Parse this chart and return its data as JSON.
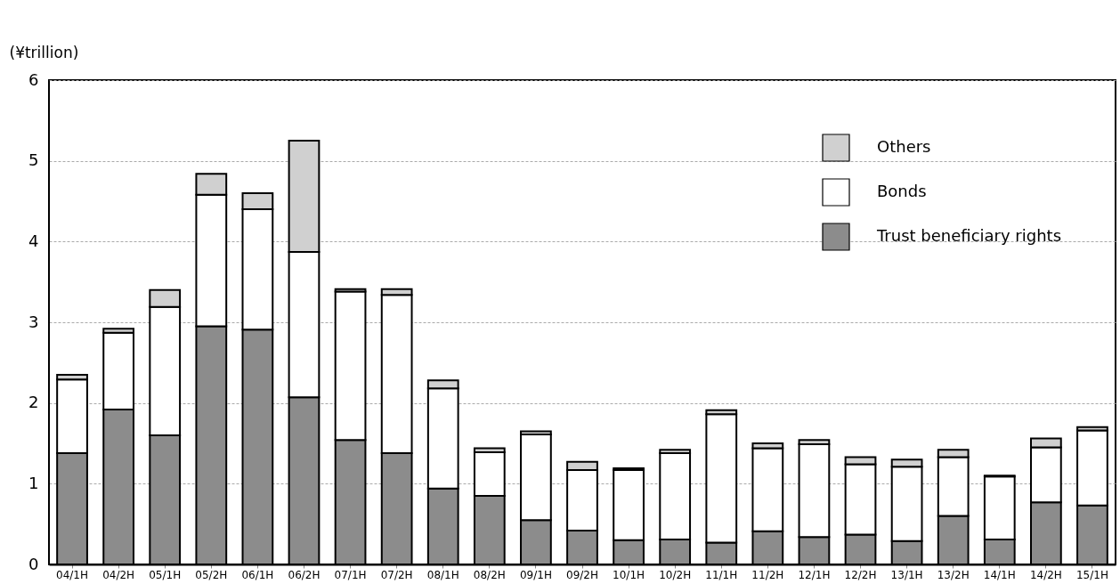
{
  "chart_data": {
    "type": "bar",
    "stacked": true,
    "ylabel": "(¥trillion)",
    "categories": [
      "04/1H",
      "04/2H",
      "05/1H",
      "05/2H",
      "06/1H",
      "06/2H",
      "07/1H",
      "07/2H",
      "08/1H",
      "08/2H",
      "09/1H",
      "09/2H",
      "10/1H",
      "10/2H",
      "11/1H",
      "11/2H",
      "12/1H",
      "12/2H",
      "13/1H",
      "13/2H",
      "14/1H",
      "14/2H",
      "15/1H"
    ],
    "series": [
      {
        "name": "Trust beneficiary rights",
        "color": "#8c8c8c",
        "values": [
          1.38,
          1.92,
          1.6,
          2.95,
          2.91,
          2.07,
          1.54,
          1.38,
          0.94,
          0.85,
          0.55,
          0.42,
          0.3,
          0.31,
          0.27,
          0.41,
          0.34,
          0.37,
          0.29,
          0.6,
          0.31,
          0.77,
          0.73
        ]
      },
      {
        "name": "Bonds",
        "color": "#ffffff",
        "values": [
          0.91,
          0.95,
          1.59,
          1.63,
          1.49,
          1.8,
          1.84,
          1.96,
          1.24,
          0.54,
          1.06,
          0.75,
          0.87,
          1.07,
          1.59,
          1.03,
          1.15,
          0.87,
          0.92,
          0.73,
          0.78,
          0.68,
          0.93
        ]
      },
      {
        "name": "Others",
        "color": "#d0d0d0",
        "values": [
          0.06,
          0.05,
          0.21,
          0.26,
          0.2,
          1.38,
          0.03,
          0.07,
          0.1,
          0.05,
          0.04,
          0.1,
          0.02,
          0.04,
          0.05,
          0.06,
          0.05,
          0.09,
          0.09,
          0.09,
          0.01,
          0.11,
          0.04
        ]
      }
    ],
    "ylim": [
      0,
      6
    ],
    "yticks": [
      0,
      1,
      2,
      3,
      4,
      5,
      6
    ],
    "grid": "y",
    "legend": "top right"
  }
}
